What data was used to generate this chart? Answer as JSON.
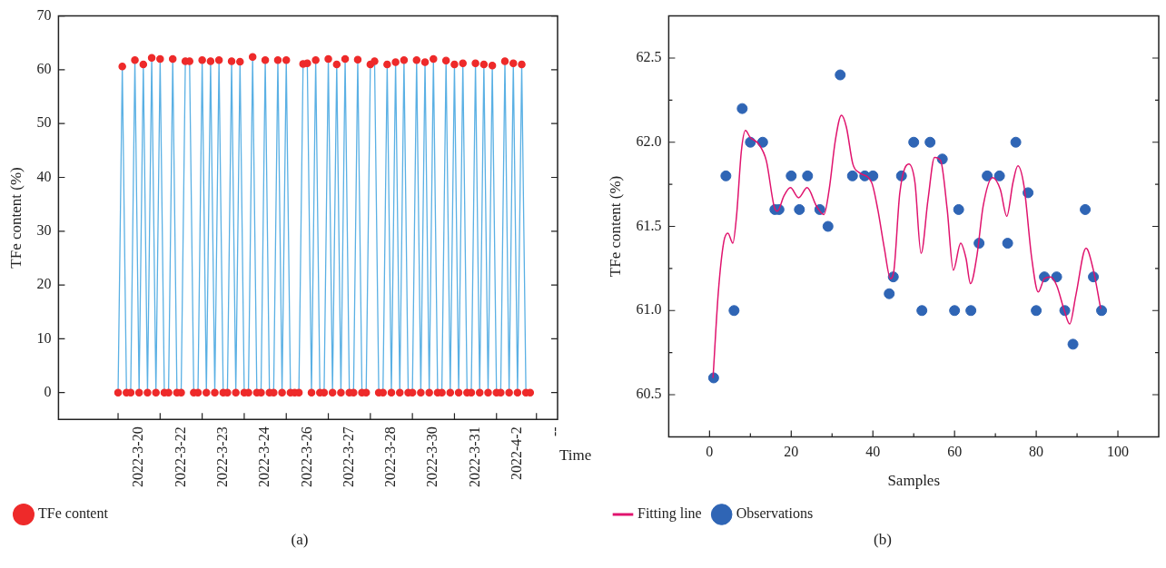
{
  "chart_data": [
    {
      "type": "line",
      "xlabel": "Time",
      "ylabel": "TFe content (%)",
      "legend": "bottom left",
      "marker": "circle",
      "annotations": [
        "(a)"
      ],
      "categories": [
        null,
        null,
        null,
        null,
        null,
        "2022-3-20",
        null,
        null,
        null,
        null,
        null,
        null,
        null,
        null,
        null,
        "2022-3-22",
        null,
        null,
        null,
        null,
        null,
        null,
        null,
        null,
        null,
        "2022-3-23",
        null,
        null,
        null,
        null,
        null,
        null,
        null,
        null,
        null,
        "2022-3-24",
        null,
        null,
        null,
        null,
        null,
        null,
        null,
        null,
        null,
        "2022-3-26",
        null,
        null,
        null,
        null,
        null,
        null,
        null,
        null,
        null,
        "2022-3-27",
        null,
        null,
        null,
        null,
        null,
        null,
        null,
        null,
        null,
        "2022-3-28",
        null,
        null,
        null,
        null,
        null,
        null,
        null,
        null,
        null,
        "2022-3-30",
        null,
        null,
        null,
        null,
        null,
        null,
        null,
        null,
        null,
        "2022-3-31",
        null,
        null,
        null,
        null,
        null,
        null,
        null,
        null,
        null,
        "2022-4-2",
        null,
        null,
        null,
        null,
        null,
        null,
        null,
        null,
        "--"
      ],
      "ylim": [
        -5,
        70
      ],
      "yticks": [
        0,
        10,
        20,
        30,
        40,
        50,
        60,
        70
      ],
      "series": [
        {
          "name": "TFe content",
          "color": "#5ab0e4",
          "values": [
            0,
            60.6,
            0,
            0,
            61.8,
            0,
            61.0,
            0,
            62.2,
            0,
            62.0,
            0,
            0,
            62.0,
            0,
            0,
            61.6,
            61.6,
            0,
            0,
            61.8,
            0,
            61.6,
            0,
            61.8,
            0,
            0,
            61.6,
            0,
            61.5,
            0,
            0,
            62.4,
            0,
            0,
            61.8,
            0,
            0,
            61.8,
            0,
            61.8,
            0,
            0,
            0,
            61.1,
            61.2,
            0,
            61.8,
            0,
            0,
            62.0,
            0,
            61.0,
            0,
            62.0,
            0,
            0,
            61.9,
            0,
            0,
            61.0,
            61.6,
            0,
            0,
            61.0,
            0,
            61.4,
            0,
            61.8,
            0,
            0,
            61.8,
            0,
            61.4,
            0,
            62.0,
            0,
            0,
            61.7,
            0,
            61.0,
            0,
            61.2,
            0,
            0,
            61.2,
            0,
            61.0,
            0,
            60.8,
            0,
            0,
            61.6,
            0,
            61.2,
            0,
            61.0,
            0,
            0,
            null,
            null,
            null,
            null,
            null,
            null
          ]
        }
      ]
    },
    {
      "type": "scatter",
      "xlabel": "Samples",
      "ylabel": "TFe content (%)",
      "legend": "bottom left",
      "marker": "circle",
      "annotations": [
        "(b)"
      ],
      "xlim": [
        -10,
        110
      ],
      "xticks": [
        0,
        {
          "value": 10,
          "label": null
        },
        20,
        {
          "value": 30,
          "label": null
        },
        40,
        {
          "value": 50,
          "label": null
        },
        60,
        {
          "value": 70,
          "label": null
        },
        80,
        {
          "value": 90,
          "label": null
        },
        100
      ],
      "ylim": [
        60.25,
        62.75
      ],
      "yticks": [
        {
          "value": 60.5,
          "label": "60.5"
        },
        {
          "value": 60.75,
          "label": null
        },
        {
          "value": 61,
          "label": "61.0"
        },
        {
          "value": 61.25,
          "label": null
        },
        {
          "value": 61.5,
          "label": "61.5"
        },
        {
          "value": 61.75,
          "label": null
        },
        {
          "value": 62,
          "label": "62.0"
        },
        {
          "value": 62.25,
          "label": null
        },
        {
          "value": 62.5,
          "label": "62.5"
        }
      ],
      "series": [
        {
          "name": "Fitting line",
          "type": "line",
          "marker": "none",
          "color": "#e0146e",
          "x": [
            0.85,
            2.15,
            3.5,
            4.5,
            5.7,
            6.6,
            7.8,
            8.8,
            9.9,
            12,
            13.9,
            15.8,
            16.6,
            18.2,
            19.8,
            21.8,
            23.9,
            26.2,
            28,
            29.3,
            30.8,
            32.3,
            33.5,
            35.1,
            36.6,
            39.7,
            41.2,
            42.8,
            44.3,
            45.1,
            46.6,
            48.8,
            50.3,
            51.8,
            53.5,
            55.1,
            56.6,
            58.2,
            59.7,
            61.5,
            62.8,
            63.9,
            65.5,
            67,
            69.3,
            71.2,
            72.8,
            74.3,
            75.5,
            77,
            78.9,
            80.5,
            82,
            83.5,
            85,
            87,
            88.2,
            89.7,
            92.2,
            93.9,
            95.8
          ],
          "values": [
            60.6,
            61.11,
            61.41,
            61.46,
            61.4,
            61.56,
            61.95,
            62.07,
            62.03,
            61.99,
            61.89,
            61.62,
            61.59,
            61.68,
            61.73,
            61.67,
            61.73,
            61.62,
            61.57,
            61.72,
            62.01,
            62.16,
            62.09,
            61.87,
            61.82,
            61.76,
            61.6,
            61.37,
            61.19,
            61.23,
            61.7,
            61.87,
            61.76,
            61.34,
            61.66,
            61.91,
            61.89,
            61.6,
            61.24,
            61.4,
            61.31,
            61.16,
            61.33,
            61.62,
            61.79,
            61.72,
            61.56,
            61.76,
            61.86,
            61.74,
            61.31,
            61.11,
            61.19,
            61.2,
            61.15,
            60.99,
            60.92,
            61.09,
            61.37,
            61.25,
            61.01
          ]
        },
        {
          "name": "Observations",
          "type": "scatter",
          "color": "#2f65b5",
          "x": [
            1,
            4,
            6,
            8,
            10,
            13,
            16,
            17,
            20,
            22,
            24,
            27,
            29,
            32,
            35,
            38,
            40,
            44,
            45,
            47,
            50,
            52,
            54,
            57,
            60,
            61,
            64,
            66,
            68,
            71,
            73,
            75,
            78,
            80,
            82,
            85,
            87,
            89,
            92,
            94,
            96
          ],
          "values": [
            60.6,
            61.8,
            61.0,
            62.2,
            62.0,
            62.0,
            61.6,
            61.6,
            61.8,
            61.6,
            61.8,
            61.6,
            61.5,
            62.4,
            61.8,
            61.8,
            61.8,
            61.1,
            61.2,
            61.8,
            62.0,
            61.0,
            62.0,
            61.9,
            61.0,
            61.6,
            61.0,
            61.4,
            61.8,
            61.8,
            61.4,
            62.0,
            61.7,
            61.0,
            61.2,
            61.2,
            61.0,
            60.8,
            61.6,
            61.2,
            61.0
          ]
        }
      ]
    }
  ]
}
